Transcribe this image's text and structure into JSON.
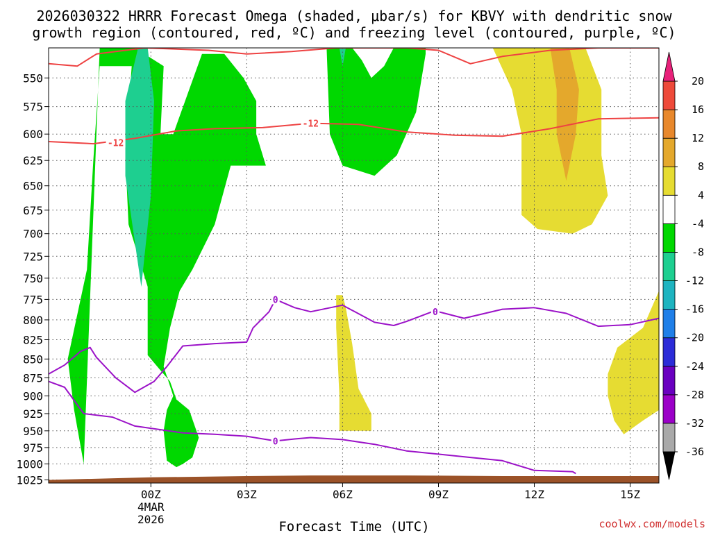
{
  "chart_data": {
    "type": "time-height cross section",
    "title_line1": "2026030322 HRRR Forecast Omega (shaded, μbar/s) for KBVY with dendritic snow",
    "title_line2": "growth region (contoured, red, ºC) and freezing level (contoured, purple, ºC)",
    "xlabel": "Forecast Time (UTC)",
    "credit": "coolwx.com/models",
    "x_hours_range": [
      -3.2,
      15.9
    ],
    "y_pressure_range": [
      1030,
      525
    ],
    "y_ticks": [
      550,
      575,
      600,
      625,
      650,
      675,
      700,
      725,
      750,
      775,
      800,
      825,
      850,
      875,
      900,
      925,
      950,
      975,
      1000,
      1025
    ],
    "x_ticks": [
      {
        "hour": 0,
        "label": "00Z",
        "sub1": "4MAR",
        "sub2": "2026"
      },
      {
        "hour": 3,
        "label": "03Z"
      },
      {
        "hour": 6,
        "label": "06Z"
      },
      {
        "hour": 9,
        "label": "09Z"
      },
      {
        "hour": 12,
        "label": "12Z"
      },
      {
        "hour": 15,
        "label": "15Z"
      }
    ],
    "colorbar": {
      "levels": [
        -36,
        -32,
        -28,
        -24,
        -20,
        -16,
        -12,
        -8,
        -4,
        4,
        8,
        12,
        16,
        20
      ],
      "colors": [
        "#a9a9a9",
        "#9b00c8",
        "#6a00c0",
        "#2c2cd8",
        "#1f7fe8",
        "#1eb4c0",
        "#1ecf90",
        "#00d800",
        "#ffffff",
        "#e6dc32",
        "#e4a82c",
        "#e8882c",
        "#ee4a3a"
      ],
      "top_color": "#e8217a",
      "bottom_color": "#000000"
    },
    "shaded_regions": [
      {
        "name": "upward-motion-large",
        "omega_band": "-8 to -4",
        "color": "#00d800",
        "points": [
          [
            -2.1,
            1000
          ],
          [
            -2.4,
            920
          ],
          [
            -2.6,
            850
          ],
          [
            -2.0,
            740
          ],
          [
            -1.8,
            625
          ],
          [
            -1.6,
            540
          ],
          [
            -0.6,
            540
          ],
          [
            -0.8,
            620
          ],
          [
            -0.7,
            690
          ],
          [
            -0.1,
            760
          ],
          [
            -0.1,
            845
          ],
          [
            0.3,
            865
          ],
          [
            0.6,
            880
          ],
          [
            0.8,
            905
          ],
          [
            1.2,
            920
          ],
          [
            1.5,
            960
          ],
          [
            1.3,
            990
          ],
          [
            1.0,
            1000
          ],
          [
            0.8,
            1005
          ],
          [
            0.5,
            995
          ],
          [
            0.4,
            950
          ],
          [
            0.5,
            920
          ],
          [
            0.7,
            900
          ],
          [
            0.4,
            860
          ],
          [
            0.6,
            810
          ],
          [
            0.9,
            765
          ],
          [
            1.3,
            740
          ],
          [
            2.0,
            690
          ],
          [
            2.5,
            630
          ],
          [
            3.6,
            630
          ],
          [
            3.3,
            600
          ],
          [
            3.3,
            570
          ],
          [
            2.9,
            550
          ],
          [
            2.3,
            530
          ],
          [
            1.6,
            530
          ],
          [
            1.2,
            560
          ],
          [
            0.7,
            600
          ],
          [
            0.3,
            600
          ],
          [
            0.4,
            540
          ],
          [
            -0.5,
            525
          ],
          [
            -1.6,
            525
          ]
        ]
      },
      {
        "name": "upward-motion-upper",
        "omega_band": "-8 to -4",
        "color": "#00d800",
        "points": [
          [
            5.5,
            525
          ],
          [
            5.6,
            600
          ],
          [
            6.0,
            630
          ],
          [
            7.0,
            640
          ],
          [
            7.7,
            620
          ],
          [
            8.3,
            580
          ],
          [
            8.6,
            530
          ],
          [
            8.6,
            525
          ],
          [
            7.6,
            525
          ],
          [
            7.3,
            540
          ],
          [
            6.9,
            550
          ],
          [
            6.6,
            535
          ],
          [
            6.3,
            525
          ]
        ]
      },
      {
        "name": "upward-motion-strong",
        "omega_band": "-12 to -8",
        "color": "#1ecf90",
        "points": [
          [
            -0.4,
            525
          ],
          [
            -0.8,
            570
          ],
          [
            -0.8,
            640
          ],
          [
            -0.3,
            760
          ],
          [
            0.0,
            660
          ],
          [
            0.1,
            570
          ],
          [
            -0.1,
            525
          ]
        ]
      },
      {
        "name": "upward-motion-strong-upper",
        "omega_band": "-12 to -8",
        "color": "#1ecf90",
        "points": [
          [
            5.9,
            525
          ],
          [
            6.0,
            540
          ],
          [
            6.1,
            525
          ]
        ]
      },
      {
        "name": "downward-motion-upper",
        "omega_band": "4 to 8",
        "color": "#e6dc32",
        "points": [
          [
            10.7,
            525
          ],
          [
            11.3,
            560
          ],
          [
            11.6,
            600
          ],
          [
            11.6,
            680
          ],
          [
            12.1,
            695
          ],
          [
            13.2,
            700
          ],
          [
            13.8,
            690
          ],
          [
            14.3,
            660
          ],
          [
            14.1,
            620
          ],
          [
            14.1,
            560
          ],
          [
            13.6,
            525
          ]
        ]
      },
      {
        "name": "downward-motion-upper-strong",
        "omega_band": "8 to 12",
        "color": "#e4a82c",
        "points": [
          [
            12.5,
            525
          ],
          [
            12.7,
            560
          ],
          [
            12.7,
            600
          ],
          [
            13.0,
            645
          ],
          [
            13.3,
            600
          ],
          [
            13.4,
            560
          ],
          [
            13.1,
            525
          ]
        ]
      },
      {
        "name": "downward-motion-lower-mid",
        "omega_band": "4 to 8",
        "color": "#e6dc32",
        "points": [
          [
            5.8,
            770
          ],
          [
            5.8,
            810
          ],
          [
            5.9,
            900
          ],
          [
            5.9,
            950
          ],
          [
            6.9,
            950
          ],
          [
            6.9,
            925
          ],
          [
            6.5,
            890
          ],
          [
            6.3,
            830
          ],
          [
            6.1,
            785
          ],
          [
            6.0,
            770
          ]
        ]
      },
      {
        "name": "downward-motion-lower-right",
        "omega_band": "4 to 8",
        "color": "#e6dc32",
        "points": [
          [
            15.9,
            765
          ],
          [
            15.4,
            810
          ],
          [
            14.6,
            835
          ],
          [
            14.3,
            870
          ],
          [
            14.3,
            900
          ],
          [
            14.5,
            935
          ],
          [
            14.8,
            955
          ],
          [
            15.4,
            935
          ],
          [
            15.9,
            920
          ]
        ]
      }
    ],
    "ground_terrain": {
      "color": "#9b5228",
      "bottom_pressure": 1030,
      "points": [
        [
          -3.2,
          1025
        ],
        [
          0,
          1021
        ],
        [
          3,
          1019
        ],
        [
          5,
          1018
        ],
        [
          8,
          1018
        ],
        [
          11,
          1019
        ],
        [
          15.9,
          1019
        ]
      ]
    },
    "dgz_contours": [
      {
        "value": -12,
        "label": "-12",
        "color": "#ee4242",
        "points": [
          [
            -3.2,
            538
          ],
          [
            -2.3,
            540
          ],
          [
            -1.7,
            530
          ],
          [
            -0.2,
            523
          ],
          [
            1.8,
            527
          ],
          [
            3.0,
            530
          ],
          [
            4.4,
            528
          ],
          [
            5.8,
            524
          ],
          [
            8.0,
            525
          ],
          [
            9.0,
            527
          ],
          [
            10.0,
            538
          ],
          [
            11.0,
            532
          ],
          [
            12.5,
            527
          ],
          [
            14.0,
            523
          ],
          [
            15.9,
            523
          ]
        ]
      },
      {
        "value": -12,
        "label": "-12",
        "color": "#ee4242",
        "label_positions": [
          [
            -1.1,
            608
          ],
          [
            5.0,
            590
          ]
        ],
        "points": [
          [
            -3.2,
            607
          ],
          [
            -1.8,
            609
          ],
          [
            -0.5,
            604
          ],
          [
            0.8,
            597
          ],
          [
            2.0,
            595
          ],
          [
            3.5,
            594
          ],
          [
            5.0,
            590
          ],
          [
            6.5,
            591
          ],
          [
            8.0,
            598
          ],
          [
            9.5,
            601
          ],
          [
            11.0,
            602
          ],
          [
            12.5,
            595
          ],
          [
            14.0,
            586
          ],
          [
            15.9,
            585
          ]
        ]
      }
    ],
    "freezing_contours": [
      {
        "value": 0,
        "label": "0",
        "color": "#9b12c8",
        "label_positions": [
          [
            3.9,
            775
          ],
          [
            8.9,
            790
          ]
        ],
        "points": [
          [
            -3.2,
            870
          ],
          [
            -2.7,
            858
          ],
          [
            -2.2,
            840
          ],
          [
            -1.9,
            835
          ],
          [
            -1.7,
            848
          ],
          [
            -1.1,
            875
          ],
          [
            -0.5,
            895
          ],
          [
            0.1,
            880
          ],
          [
            0.5,
            860
          ],
          [
            1.0,
            833
          ],
          [
            2.0,
            830
          ],
          [
            3.0,
            828
          ],
          [
            3.2,
            810
          ],
          [
            3.7,
            790
          ],
          [
            3.9,
            775
          ],
          [
            4.5,
            785
          ],
          [
            5.0,
            790
          ],
          [
            6.0,
            782
          ],
          [
            7.0,
            803
          ],
          [
            7.6,
            807
          ],
          [
            8.0,
            802
          ],
          [
            8.8,
            790
          ],
          [
            9.0,
            790
          ],
          [
            9.8,
            798
          ],
          [
            11.0,
            787
          ],
          [
            12.0,
            785
          ],
          [
            13.0,
            792
          ],
          [
            14.0,
            808
          ],
          [
            15.0,
            806
          ],
          [
            15.9,
            798
          ]
        ]
      },
      {
        "value": 0,
        "label": "0",
        "color": "#9b12c8",
        "label_positions": [
          [
            3.9,
            965
          ]
        ],
        "points": [
          [
            -3.2,
            880
          ],
          [
            -2.7,
            888
          ],
          [
            -2.1,
            925
          ],
          [
            -1.2,
            930
          ],
          [
            -0.5,
            943
          ],
          [
            1.0,
            953
          ],
          [
            2.0,
            955
          ],
          [
            3.0,
            958
          ],
          [
            3.9,
            965
          ],
          [
            4.5,
            962
          ],
          [
            5.0,
            960
          ],
          [
            6.0,
            963
          ],
          [
            7.0,
            970
          ],
          [
            8.0,
            980
          ],
          [
            9.0,
            985
          ],
          [
            10.0,
            990
          ],
          [
            11.0,
            995
          ],
          [
            12.0,
            1010
          ],
          [
            13.2,
            1012
          ],
          [
            13.3,
            1015
          ]
        ]
      }
    ]
  }
}
